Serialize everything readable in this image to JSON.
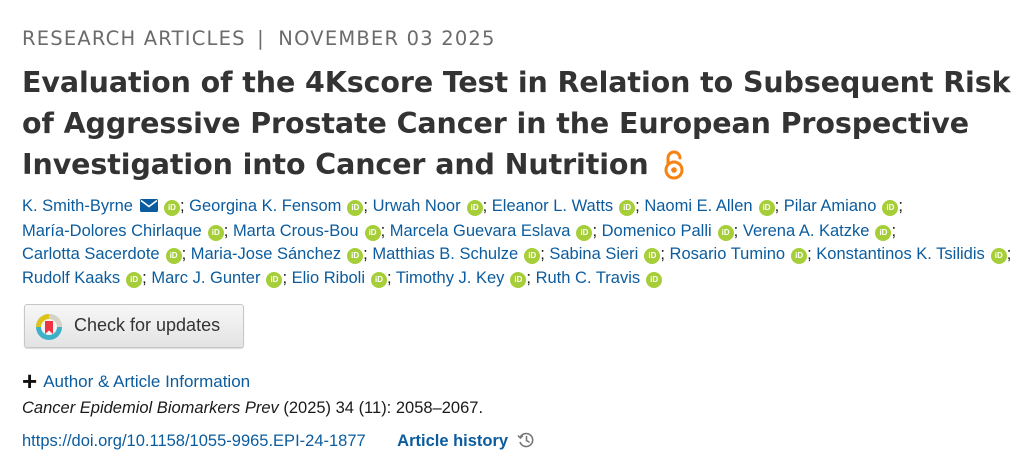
{
  "header": {
    "section": "RESEARCH ARTICLES",
    "separator": "|",
    "date": "NOVEMBER 03 2025"
  },
  "article": {
    "title": "Evaluation of the 4Kscore Test in Relation to Subsequent Risk of Aggressive Prostate Cancer in the European Prospective Investigation into Cancer and Nutrition",
    "open_access_icon": "open-access-lock-icon"
  },
  "authors": [
    {
      "name": "K. Smith-Byrne",
      "mail": true
    },
    {
      "name": "Georgina K. Fensom"
    },
    {
      "name": "Urwah Noor"
    },
    {
      "name": "Eleanor L. Watts"
    },
    {
      "name": "Naomi E. Allen"
    },
    {
      "name": "Pilar Amiano"
    },
    {
      "name": "María-Dolores Chirlaque"
    },
    {
      "name": "Marta Crous-Bou"
    },
    {
      "name": "Marcela Guevara Eslava"
    },
    {
      "name": "Domenico Palli"
    },
    {
      "name": "Verena A. Katzke"
    },
    {
      "name": "Carlotta Sacerdote"
    },
    {
      "name": "Maria-Jose Sánchez"
    },
    {
      "name": "Matthias B. Schulze"
    },
    {
      "name": "Sabina Sieri"
    },
    {
      "name": "Rosario Tumino"
    },
    {
      "name": "Konstantinos K. Tsilidis"
    },
    {
      "name": "Rudolf Kaaks"
    },
    {
      "name": "Marc J. Gunter"
    },
    {
      "name": "Elio Riboli"
    },
    {
      "name": "Timothy J. Key"
    },
    {
      "name": "Ruth C. Travis"
    }
  ],
  "orcid_label": "iD",
  "check_updates": {
    "label": "Check for updates"
  },
  "author_info": {
    "plus": "+",
    "label": "Author & Article Information"
  },
  "citation": {
    "journal": "Cancer Epidemiol Biomarkers Prev",
    "details": " (2025) 34 (11): 2058–2067."
  },
  "doi": {
    "url": "https://doi.org/10.1158/1055-9965.EPI-24-1877"
  },
  "history": {
    "label": "Article history"
  },
  "colors": {
    "link": "#0b5c9e",
    "orcid": "#a6ce39",
    "open_access": "#f68212"
  }
}
